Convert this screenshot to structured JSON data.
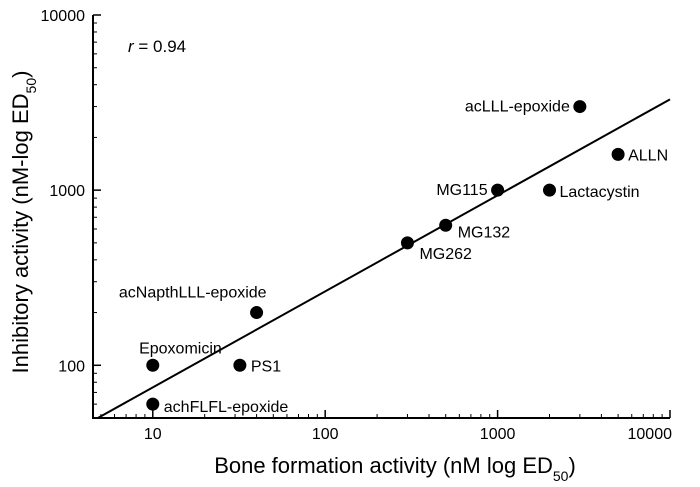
{
  "chart_data": {
    "type": "scatter",
    "title": "",
    "xlabel": "Bone formation activity (nM log ED",
    "xlabel_sub": "50",
    "xlabel_end": ")",
    "ylabel": "Inhibitory activity (nM-log ED",
    "ylabel_sub": "50",
    "ylabel_end": ")",
    "x_scale": "log",
    "y_scale": "log",
    "xlim": [
      4.5,
      10000
    ],
    "ylim": [
      50,
      10000
    ],
    "x_ticks": [
      {
        "value": 10,
        "label": "10"
      },
      {
        "value": 100,
        "label": "100"
      },
      {
        "value": 1000,
        "label": "1000"
      },
      {
        "value": 10000,
        "label": "10000"
      }
    ],
    "y_ticks": [
      {
        "value": 100,
        "label": "100"
      },
      {
        "value": 1000,
        "label": "1000"
      },
      {
        "value": 10000,
        "label": "10000"
      }
    ],
    "grid": false,
    "legend": "none",
    "annotation": {
      "var": "r",
      "text": " = 0.94"
    },
    "point_color": "#000000",
    "points": [
      {
        "label": "acLLL-epoxide",
        "x": 3000,
        "y": 3000
      },
      {
        "label": "ALLN",
        "x": 5000,
        "y": 1600
      },
      {
        "label": "MG115",
        "x": 1000,
        "y": 1000
      },
      {
        "label": "Lactacystin",
        "x": 2000,
        "y": 1000
      },
      {
        "label": "MG132",
        "x": 500,
        "y": 630
      },
      {
        "label": "MG262",
        "x": 300,
        "y": 500
      },
      {
        "label": "acNapthLLL-epoxide",
        "x": 40,
        "y": 200
      },
      {
        "label": "Epoxomicin",
        "x": 10,
        "y": 100
      },
      {
        "label": "PS1",
        "x": 32,
        "y": 100
      },
      {
        "label": "achFLFL-epoxide",
        "x": 10,
        "y": 60
      }
    ],
    "fit_line": {
      "x": [
        4.8,
        10000
      ],
      "y": [
        50,
        3300
      ]
    }
  }
}
